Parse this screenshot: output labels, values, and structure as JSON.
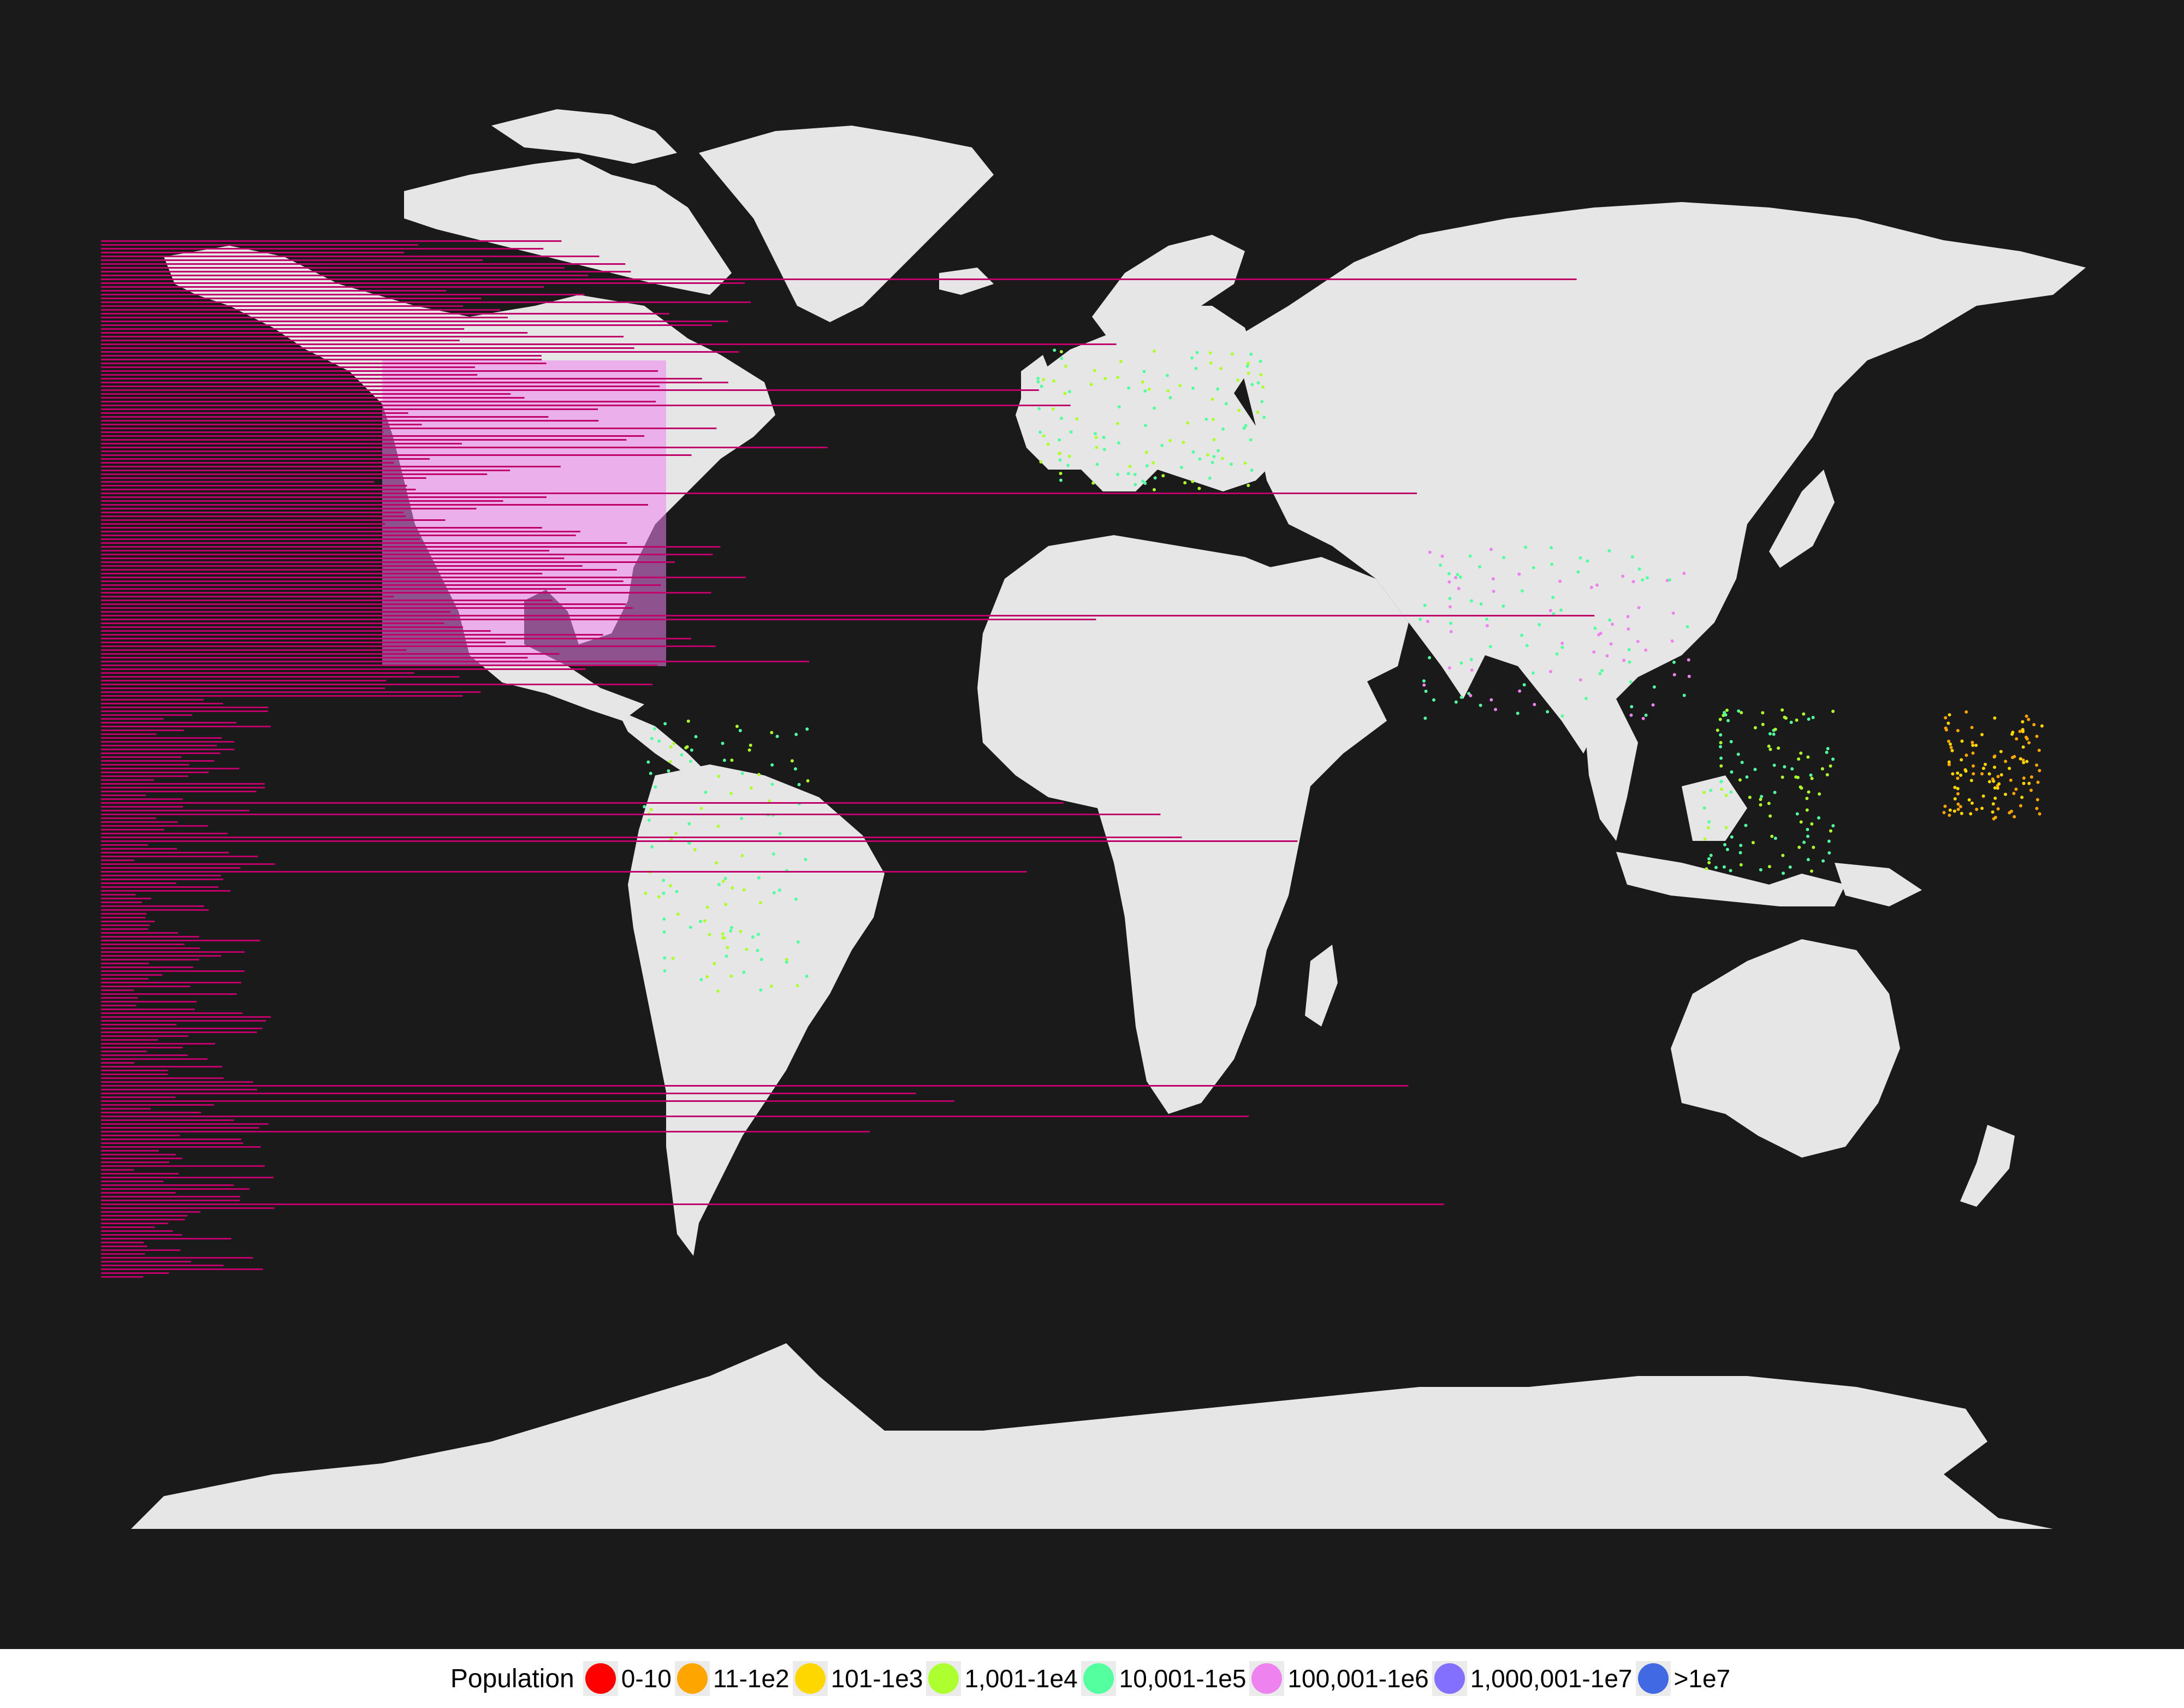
{
  "chart_data": {
    "type": "map",
    "title": "",
    "background_color": "#1a1a1a",
    "land_color": "#e6e6e6",
    "overlay_color": "#c0006a",
    "legend": {
      "title": "Population",
      "position": "bottom",
      "items": [
        {
          "label": "0-10",
          "color": "#ff0000"
        },
        {
          "label": "11-1e2",
          "color": "#ffa500"
        },
        {
          "label": "101-1e3",
          "color": "#ffd700"
        },
        {
          "label": "1,001-1e4",
          "color": "#adff2f"
        },
        {
          "label": "10,001-1e5",
          "color": "#54ff9f"
        },
        {
          "label": "100,001-1e6",
          "color": "#ee82ee"
        },
        {
          "label": "1,000,001-1e7",
          "color": "#8470ff"
        },
        {
          "label": ">1e7",
          "color": "#4169e1"
        }
      ]
    },
    "grid": false,
    "axes": false
  }
}
